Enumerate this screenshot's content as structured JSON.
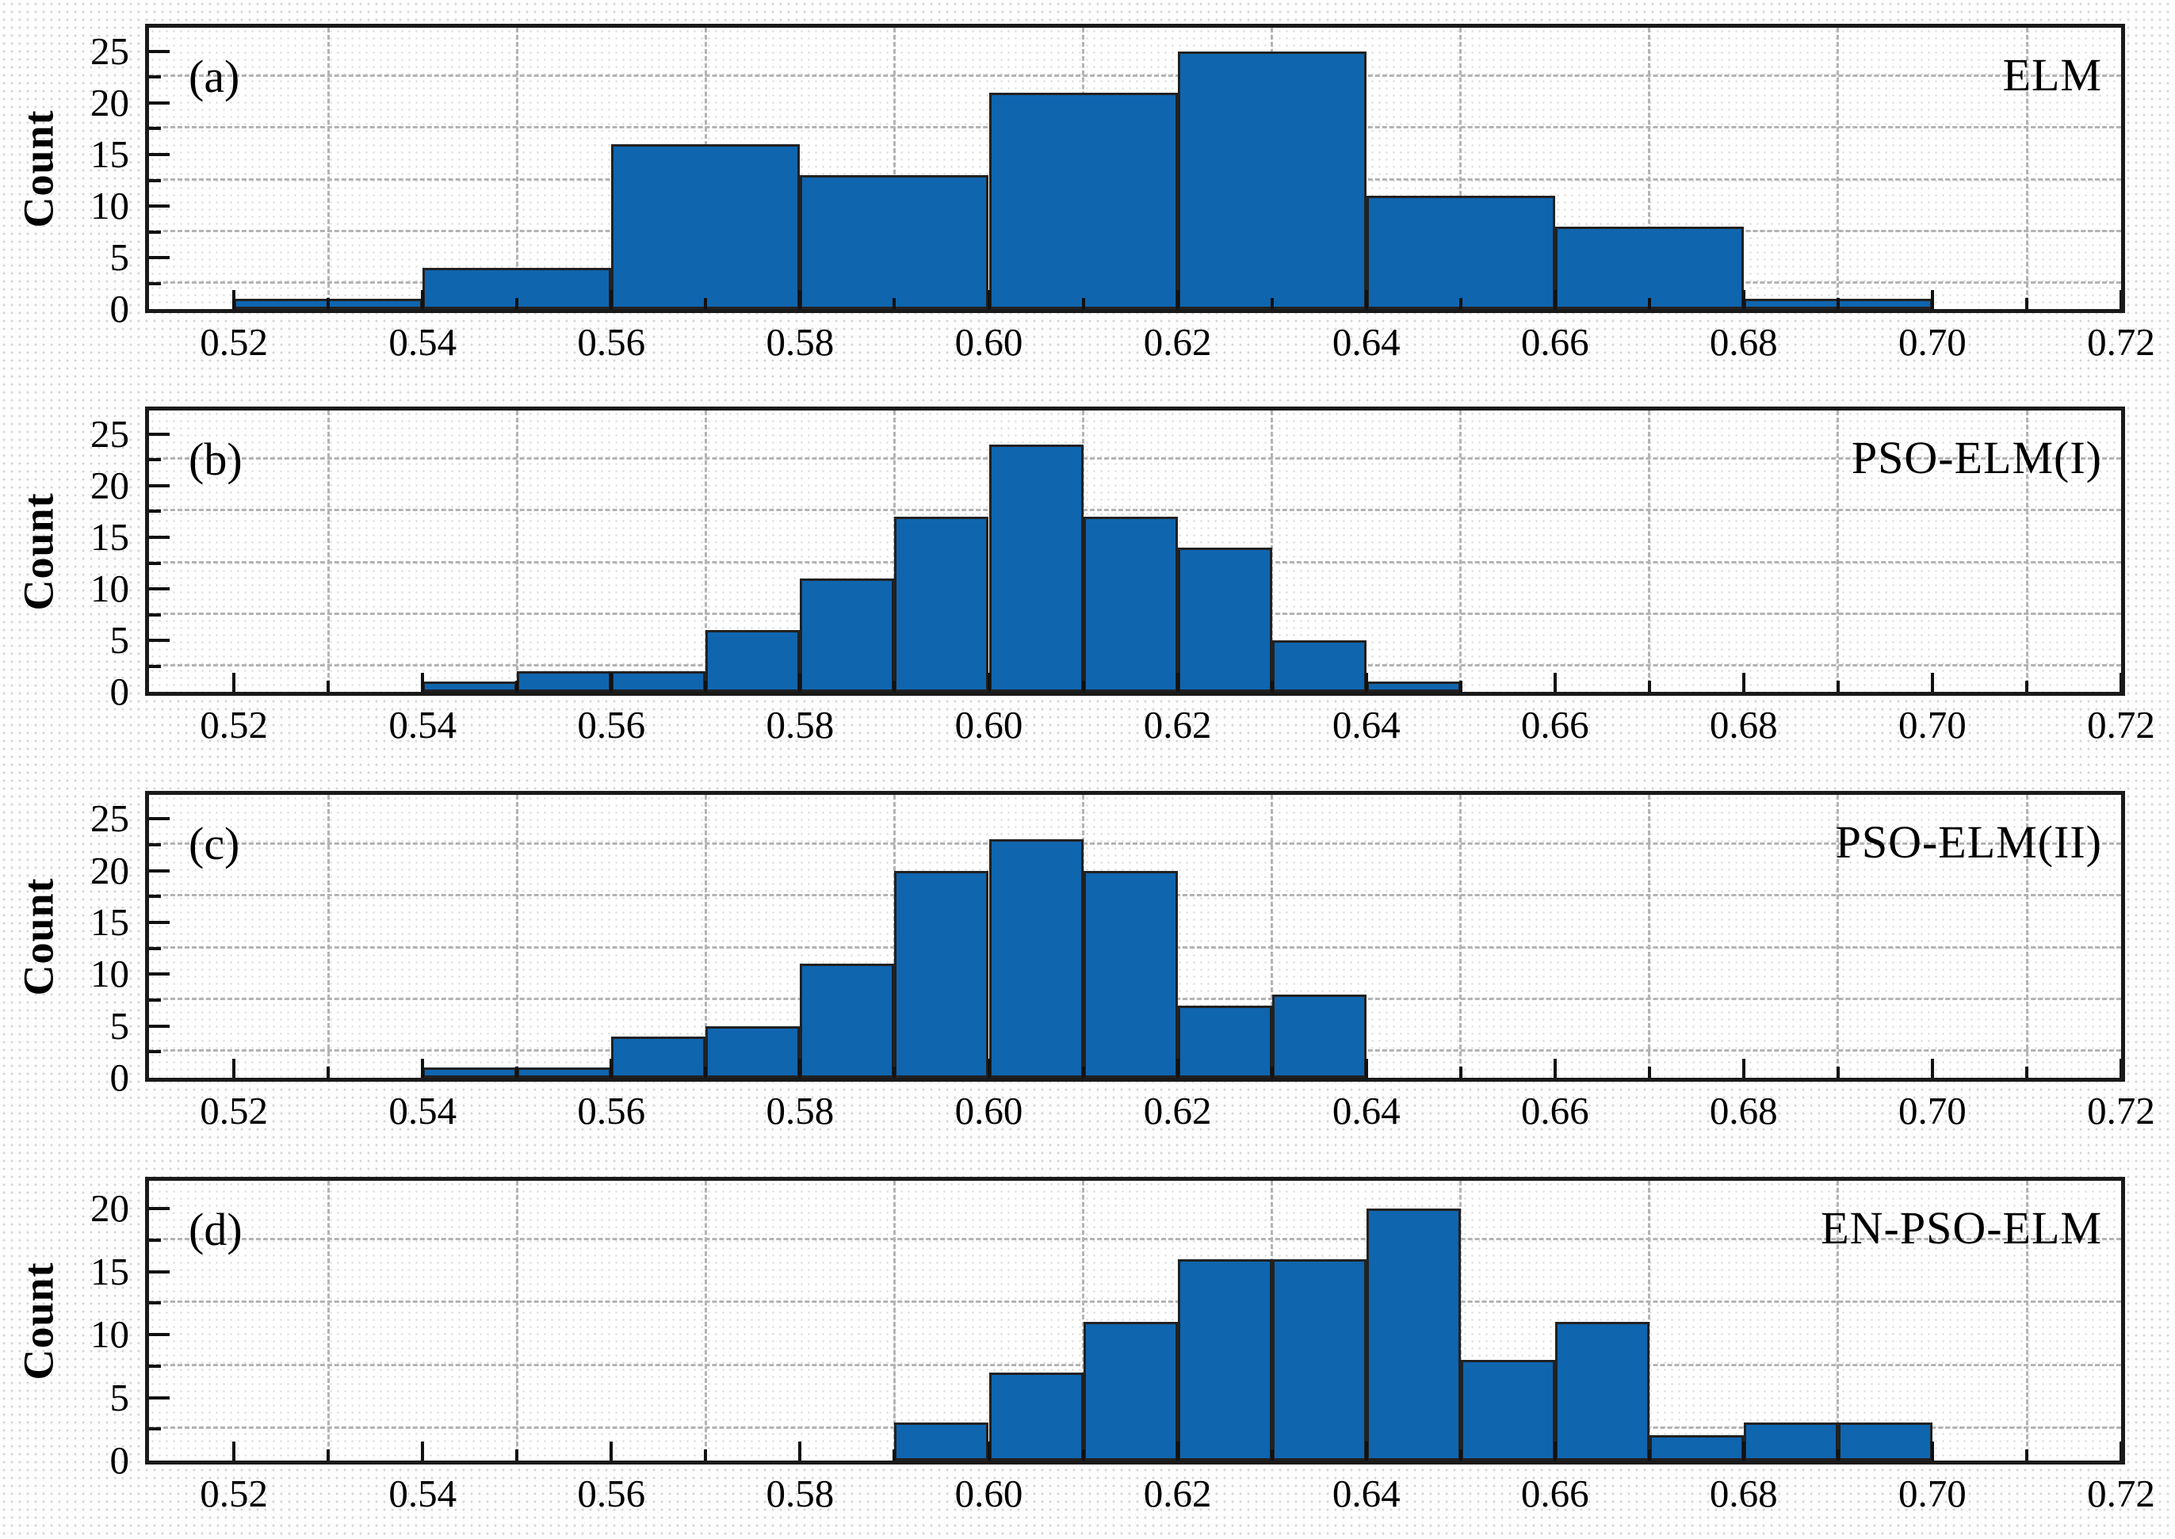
{
  "styles": {
    "bar_fill": "#1065AF",
    "bar_edge": "#212121",
    "frame_color": "#1a1a1a",
    "grid_color": "#b3b3b3",
    "text_color": "#000000",
    "background": "#ffffff"
  },
  "chart_data": [
    {
      "id": "a",
      "type": "bar",
      "subtype": "histogram",
      "panel_label": "(a)",
      "legend": "ELM",
      "ylabel": "Count",
      "xlabel": "",
      "bin_start": 0.52,
      "bin_width": 0.02,
      "counts": [
        1,
        4,
        16,
        13,
        21,
        25,
        11,
        8,
        1
      ],
      "xlim": [
        0.511,
        0.72
      ],
      "ylim": [
        0,
        27.3
      ],
      "grid": "minor-dashed",
      "legend_position": "top-right-inside",
      "y_major": [
        0,
        5,
        10,
        15,
        20,
        25
      ],
      "y_tick_labels": [
        "0",
        "5",
        "10",
        "15",
        "20",
        "25"
      ],
      "y_grid": [
        2.5,
        7.5,
        12.5,
        17.5,
        22.5
      ],
      "x_major_cents": [
        52,
        54,
        56,
        58,
        60,
        62,
        64,
        66,
        68,
        70,
        72
      ],
      "x_minor_cents": [
        53,
        55,
        57,
        59,
        61,
        63,
        65,
        67,
        69,
        71
      ],
      "x_grid_cents": [
        53,
        55,
        57,
        59,
        61,
        63,
        65,
        67,
        69,
        71
      ],
      "x_tick_labels": [
        "0.52",
        "0.54",
        "0.56",
        "0.58",
        "0.60",
        "0.62",
        "0.64",
        "0.66",
        "0.68",
        "0.70",
        "0.72"
      ]
    },
    {
      "id": "b",
      "type": "bar",
      "subtype": "histogram",
      "panel_label": "(b)",
      "legend": "PSO-ELM(I)",
      "ylabel": "Count",
      "xlabel": "",
      "bin_start": 0.54,
      "bin_width": 0.01,
      "counts": [
        1,
        2,
        2,
        6,
        11,
        17,
        24,
        17,
        14,
        5,
        1
      ],
      "xlim": [
        0.511,
        0.72
      ],
      "ylim": [
        0,
        27.3
      ],
      "grid": "minor-dashed",
      "legend_position": "top-right-inside",
      "y_major": [
        0,
        5,
        10,
        15,
        20,
        25
      ],
      "y_tick_labels": [
        "0",
        "5",
        "10",
        "15",
        "20",
        "25"
      ],
      "y_grid": [
        2.5,
        7.5,
        12.5,
        17.5,
        22.5
      ],
      "x_major_cents": [
        52,
        54,
        56,
        58,
        60,
        62,
        64,
        66,
        68,
        70,
        72
      ],
      "x_minor_cents": [
        53,
        55,
        57,
        59,
        61,
        63,
        65,
        67,
        69,
        71
      ],
      "x_grid_cents": [
        53,
        55,
        57,
        59,
        61,
        63,
        65,
        67,
        69,
        71
      ],
      "x_tick_labels": [
        "0.52",
        "0.54",
        "0.56",
        "0.58",
        "0.60",
        "0.62",
        "0.64",
        "0.66",
        "0.68",
        "0.70",
        "0.72"
      ]
    },
    {
      "id": "c",
      "type": "bar",
      "subtype": "histogram",
      "panel_label": "(c)",
      "legend": "PSO-ELM(II)",
      "ylabel": "Count",
      "xlabel": "",
      "bin_start": 0.54,
      "bin_width": 0.01,
      "counts": [
        1,
        1,
        4,
        5,
        11,
        20,
        23,
        20,
        7,
        8
      ],
      "xlim": [
        0.511,
        0.72
      ],
      "ylim": [
        0,
        27.3
      ],
      "grid": "minor-dashed",
      "legend_position": "top-right-inside",
      "y_major": [
        0,
        5,
        10,
        15,
        20,
        25
      ],
      "y_tick_labels": [
        "0",
        "5",
        "10",
        "15",
        "20",
        "25"
      ],
      "y_grid": [
        2.5,
        7.5,
        12.5,
        17.5,
        22.5
      ],
      "x_major_cents": [
        52,
        54,
        56,
        58,
        60,
        62,
        64,
        66,
        68,
        70,
        72
      ],
      "x_minor_cents": [
        53,
        55,
        57,
        59,
        61,
        63,
        65,
        67,
        69,
        71
      ],
      "x_grid_cents": [
        53,
        55,
        57,
        59,
        61,
        63,
        65,
        67,
        69,
        71
      ],
      "x_tick_labels": [
        "0.52",
        "0.54",
        "0.56",
        "0.58",
        "0.60",
        "0.62",
        "0.64",
        "0.66",
        "0.68",
        "0.70",
        "0.72"
      ]
    },
    {
      "id": "d",
      "type": "bar",
      "subtype": "histogram",
      "panel_label": "(d)",
      "legend": "EN-PSO-ELM",
      "ylabel": "Count",
      "xlabel": "",
      "bin_start": 0.59,
      "bin_width": 0.01,
      "counts": [
        3,
        7,
        11,
        16,
        16,
        20,
        8,
        11,
        2,
        3,
        3
      ],
      "xlim": [
        0.511,
        0.72
      ],
      "ylim": [
        0,
        22.2
      ],
      "grid": "minor-dashed",
      "legend_position": "top-right-inside",
      "y_major": [
        0,
        5,
        10,
        15,
        20
      ],
      "y_tick_labels": [
        "0",
        "5",
        "10",
        "15",
        "20"
      ],
      "y_grid": [
        2.5,
        7.5,
        12.5,
        17.5
      ],
      "x_major_cents": [
        52,
        54,
        56,
        58,
        60,
        62,
        64,
        66,
        68,
        70,
        72
      ],
      "x_minor_cents": [
        53,
        55,
        57,
        59,
        61,
        63,
        65,
        67,
        69,
        71
      ],
      "x_grid_cents": [
        53,
        55,
        57,
        59,
        61,
        63,
        65,
        67,
        69,
        71
      ],
      "x_tick_labels": [
        "0.52",
        "0.54",
        "0.56",
        "0.58",
        "0.60",
        "0.62",
        "0.64",
        "0.66",
        "0.68",
        "0.70",
        "0.72"
      ]
    }
  ]
}
